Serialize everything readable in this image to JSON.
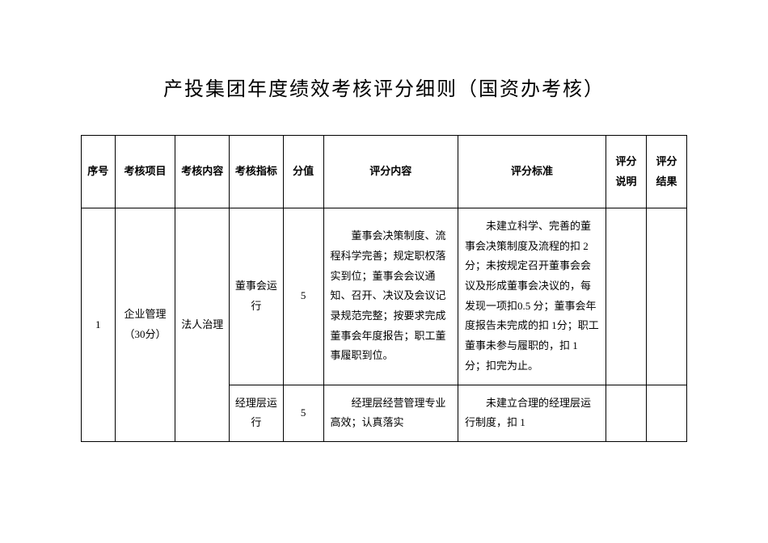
{
  "title": "产投集团年度绩效考核评分细则（国资办考核）",
  "columns": {
    "col0": "序号",
    "col1": "考核项目",
    "col2": "考核内容",
    "col3": "考核指标",
    "col4": "分值",
    "col5": "评分内容",
    "col6": "评分标准",
    "col7": "评分说明",
    "col8": "评分结果"
  },
  "rows": {
    "r1": {
      "seq": "1",
      "item": "企业管理（30分）",
      "content": "法人治理",
      "indicator": "董事会运行",
      "score": "5",
      "evalcontent": "董事会决策制度、流程科学完善；规定职权落实到位；董事会会议通知、召开、决议及会议记录规范完整；按要求完成董事会年度报告；职工董事履职到位。",
      "standard": "未建立科学、完善的董事会决策制度及流程的扣 2 分；未按规定召开董事会会议及形成董事会决议的，每发现一项扣0.5 分；董事会年度报告未完成的扣 1分；职工董事未参与履职的，扣 1 分；扣完为止。",
      "note": "",
      "result": ""
    },
    "r2": {
      "indicator": "经理层运行",
      "score": "5",
      "evalcontent": "经理层经营管理专业高效；认真落实",
      "standard": "未建立合理的经理层运行制度，扣 1",
      "note": "",
      "result": ""
    }
  }
}
